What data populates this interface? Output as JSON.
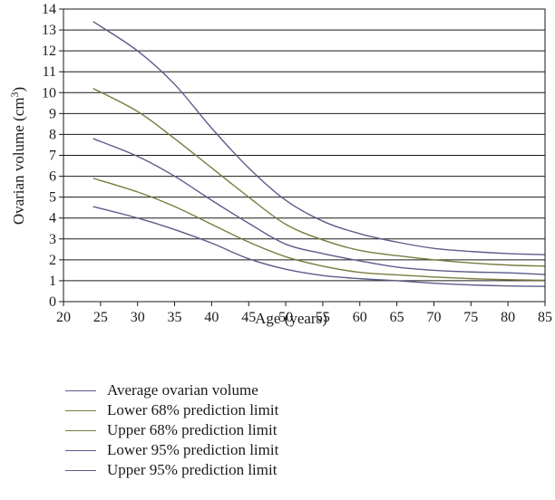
{
  "chart_data": {
    "type": "line",
    "xlabel": "Age (years)",
    "ylabel": "Ovarian volume (cm",
    "ylabel_superscript": "3",
    "ylabel_suffix": ")",
    "xlim": [
      20,
      85
    ],
    "ylim": [
      0,
      14
    ],
    "xticks": [
      20,
      25,
      30,
      35,
      40,
      45,
      50,
      55,
      60,
      65,
      70,
      75,
      80,
      85
    ],
    "yticks": [
      0,
      1,
      2,
      3,
      4,
      5,
      6,
      7,
      8,
      9,
      10,
      11,
      12,
      13,
      14
    ],
    "grid": "horizontal",
    "legend_placement": "below",
    "x": [
      24,
      30,
      35,
      40,
      45,
      50,
      55,
      60,
      65,
      70,
      75,
      80,
      85
    ],
    "series": [
      {
        "name": "Average ovarian volume",
        "color": "#5c5c8a",
        "values": [
          4.55,
          4.0,
          3.45,
          2.8,
          2.05,
          1.55,
          1.25,
          1.1,
          1.0,
          0.88,
          0.8,
          0.75,
          0.73
        ]
      },
      {
        "name": "Lower 68% prediction limit",
        "color": "#7a7a3e",
        "values": [
          5.9,
          5.25,
          4.55,
          3.7,
          2.85,
          2.15,
          1.7,
          1.4,
          1.28,
          1.18,
          1.1,
          1.05,
          1.02
        ]
      },
      {
        "name": "Upper 68% prediction limit",
        "color": "#7a7a3e",
        "values": [
          10.2,
          9.1,
          7.8,
          6.4,
          5.0,
          3.7,
          2.95,
          2.45,
          2.2,
          2.0,
          1.85,
          1.75,
          1.7
        ]
      },
      {
        "name": "Lower 95% prediction limit",
        "color": "#5c5c8a",
        "values": [
          7.8,
          6.95,
          6.0,
          4.85,
          3.75,
          2.75,
          2.3,
          1.95,
          1.65,
          1.5,
          1.42,
          1.38,
          1.3
        ]
      },
      {
        "name": "Upper 95% prediction limit",
        "color": "#5c5c8a",
        "values": [
          13.4,
          12.0,
          10.4,
          8.3,
          6.4,
          4.85,
          3.85,
          3.25,
          2.85,
          2.55,
          2.4,
          2.3,
          2.25
        ]
      }
    ]
  }
}
